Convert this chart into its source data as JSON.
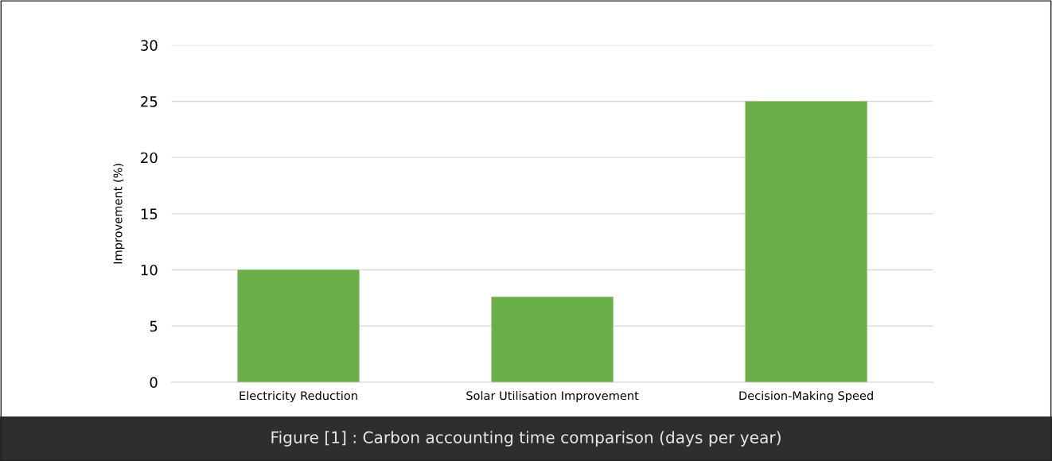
{
  "chart_data": {
    "type": "bar",
    "ylabel": "Improvement (%)",
    "categories": [
      "Electricity Reduction",
      "Solar Utilisation Improvement",
      "Decision-Making Speed"
    ],
    "values": [
      10,
      7.6,
      25
    ],
    "color": "#6aaf47",
    "ylim": [
      0,
      30
    ],
    "yticks": [
      0,
      5,
      10,
      15,
      20,
      25,
      30
    ],
    "grid": "y",
    "annotations": [
      "Figure [1] : Carbon accounting time comparison (days per year)"
    ]
  }
}
